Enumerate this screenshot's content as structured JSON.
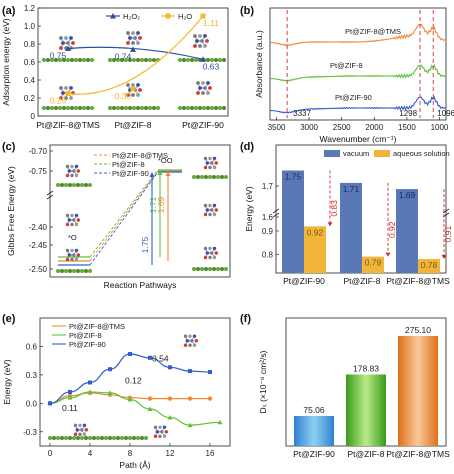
{
  "panels": [
    "(a)",
    "(b)",
    "(c)",
    "(d)",
    "(e)",
    "(f)"
  ],
  "colors": {
    "h2o2": "#2f4f9e",
    "h2o": "#f5b82a",
    "orange": "#f08a3a",
    "green": "#5cc23a",
    "blue": "#2f5fd0",
    "red": "#d62a2a",
    "vacuum": "#5a78b5",
    "aqueous": "#f0b53a"
  },
  "chart_data": [
    {
      "panel": "(a)",
      "type": "line",
      "ylabel": "Adsorption energy (eV)",
      "categories": [
        "Pt@ZIF-8@TMS",
        "Pt@ZIF-8",
        "Pt@ZIF-90"
      ],
      "ylim": [
        0,
        1.2
      ],
      "yticks": [
        "0",
        "0.2",
        "0.4",
        "0.6",
        "0.8",
        "1.0",
        "1.2"
      ],
      "series": [
        {
          "name": "H₂O₂",
          "values": [
            0.75,
            0.74,
            0.63
          ],
          "labels": [
            "0.75",
            "0.74",
            "0.63"
          ]
        },
        {
          "name": "H₂O",
          "values": [
            0.25,
            0.3,
            1.11
          ],
          "labels": [
            "0.25",
            "0.30",
            "1.11"
          ]
        }
      ]
    },
    {
      "panel": "(b)",
      "type": "line",
      "xlabel": "Wavenumber (cm⁻¹)",
      "ylabel": "Absorbance (a.u.)",
      "xticks": [
        "3500",
        "3000",
        "2500",
        "2000",
        "1500",
        "1000"
      ],
      "xlim": [
        3600,
        900
      ],
      "series": [
        {
          "name": "Pt@ZIF-8@TMS"
        },
        {
          "name": "Pt@ZIF-8"
        },
        {
          "name": "Pt@ZIF-90"
        }
      ],
      "annotations": [
        "3337",
        "1298",
        "1096"
      ]
    },
    {
      "panel": "(c)",
      "type": "line",
      "xlabel": "Reaction Pathways",
      "ylabel": "Gibbs Free Energy (eV)",
      "yticks": [
        "-0.70",
        "-0.75",
        "-2.40",
        "-2.45",
        "-2.50"
      ],
      "series": [
        {
          "name": "Pt@ZIF-8@TMS"
        },
        {
          "name": "Pt@ZIF-8"
        },
        {
          "name": "Pt@ZIF-90"
        }
      ],
      "states": [
        "*O",
        "*OO"
      ],
      "barriers": [
        "1.71",
        "1.69",
        "1.75"
      ]
    },
    {
      "panel": "(d)",
      "type": "bar",
      "ylabel": "Energy (eV)",
      "categories": [
        "Pt@ZIF-90",
        "Pt@ZIF-8",
        "Pt@ZIF-8@TMS"
      ],
      "yticks": [
        "0.8",
        "0.9",
        "1.6",
        "1.7"
      ],
      "series": [
        {
          "name": "vacuum",
          "values": [
            1.75,
            1.71,
            1.69
          ],
          "labels": [
            "1.75",
            "1.71",
            "1.69"
          ]
        },
        {
          "name": "aqueous solution",
          "values": [
            0.92,
            0.79,
            0.78
          ],
          "labels": [
            "0.92",
            "0.79",
            "0.78"
          ]
        }
      ],
      "differences": [
        "0.83",
        "0.92",
        "0.91"
      ]
    },
    {
      "panel": "(e)",
      "type": "line",
      "xlabel": "Path (Å)",
      "ylabel": "Energy (eV)",
      "xlim": [
        -1,
        18
      ],
      "ylim": [
        -0.45,
        0.9
      ],
      "xticks": [
        "0",
        "4",
        "8",
        "12",
        "16"
      ],
      "yticks": [
        "-0.3",
        "0.0",
        "0.3",
        "0.6"
      ],
      "series": [
        {
          "name": "Pt@ZIF-8@TMS",
          "x": [
            0,
            2,
            4,
            6,
            8,
            10,
            12,
            14,
            16
          ],
          "values": [
            0.0,
            0.08,
            0.11,
            0.09,
            0.06,
            0.05,
            0.05,
            0.05,
            0.05
          ]
        },
        {
          "name": "Pt@ZIF-8",
          "x": [
            0,
            2,
            4,
            6,
            8,
            10,
            12,
            14,
            17
          ],
          "values": [
            0.0,
            0.06,
            0.12,
            0.11,
            0.04,
            -0.06,
            -0.15,
            -0.23,
            -0.2
          ]
        },
        {
          "name": "Pt@ZIF-90",
          "x": [
            0,
            2,
            4,
            6,
            8,
            10,
            12,
            14,
            16
          ],
          "values": [
            0.0,
            0.12,
            0.22,
            0.36,
            0.52,
            0.48,
            0.38,
            0.34,
            0.33
          ]
        }
      ],
      "labels": [
        "0.11",
        "0.12",
        "0.54"
      ]
    },
    {
      "panel": "(f)",
      "type": "bar",
      "ylabel": "Dₛ (×10⁻⁸ cm²/s)",
      "categories": [
        "Pt@ZIF-90",
        "Pt@ZIF-8",
        "Pt@ZIF-8@TMS"
      ],
      "values": [
        75.06,
        178.83,
        275.1
      ],
      "labels": [
        "75.06",
        "178.83",
        "275.10"
      ],
      "ylim": [
        0,
        300
      ]
    }
  ]
}
